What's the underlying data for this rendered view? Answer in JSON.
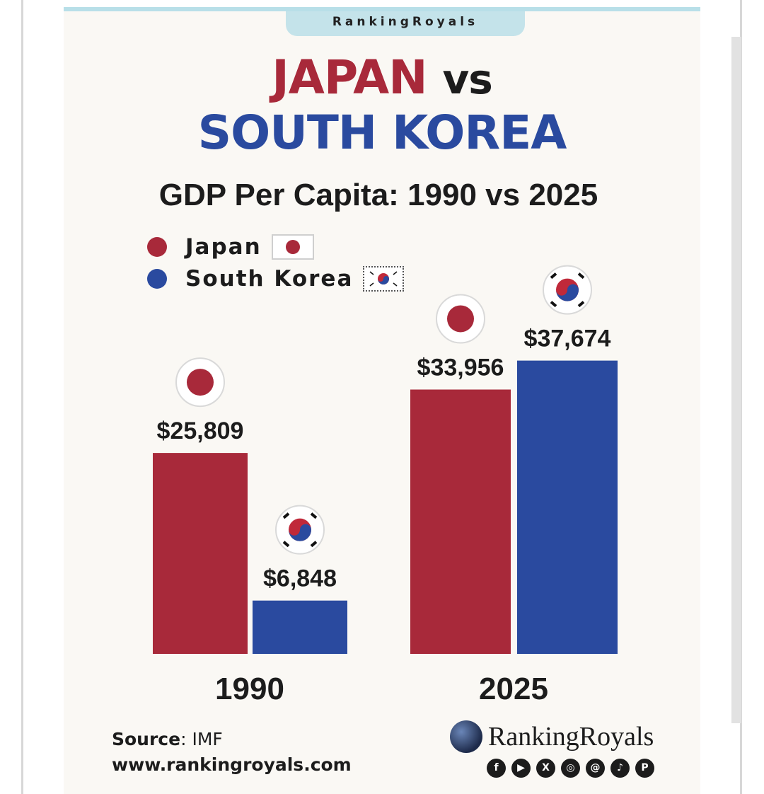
{
  "brand_tab": "RankingRoyals",
  "title": {
    "country1": "JAPAN",
    "vs": "vs",
    "country2": "SOUTH KOREA"
  },
  "subtitle": "GDP Per Capita: 1990 vs 2025",
  "legend": [
    {
      "label": "Japan",
      "color": "#a8293a",
      "flag": "japan-flag-icon"
    },
    {
      "label": "South Korea",
      "color": "#2a4a9f",
      "flag": "south-korea-flag-icon"
    }
  ],
  "chart_data": {
    "type": "bar",
    "title": "GDP Per Capita: 1990 vs 2025",
    "categories": [
      "1990",
      "2025"
    ],
    "series": [
      {
        "name": "Japan",
        "values": [
          25809,
          33956
        ],
        "labels": [
          "$25,809",
          "$33,956"
        ],
        "color": "#a8293a"
      },
      {
        "name": "South Korea",
        "values": [
          6848,
          37674
        ],
        "labels": [
          "$6,848",
          "$37,674"
        ],
        "color": "#2a4a9f"
      }
    ],
    "xlabel": "",
    "ylabel": "",
    "legend_position": "top-left",
    "grid": false
  },
  "footer": {
    "source_label": "Source",
    "source_value": ": IMF",
    "website": "www.rankingroyals.com",
    "logo_text": "RankingRoyals",
    "social_icons": [
      "facebook-icon",
      "youtube-icon",
      "x-icon",
      "instagram-icon",
      "threads-icon",
      "tiktok-icon",
      "pinterest-icon"
    ]
  }
}
